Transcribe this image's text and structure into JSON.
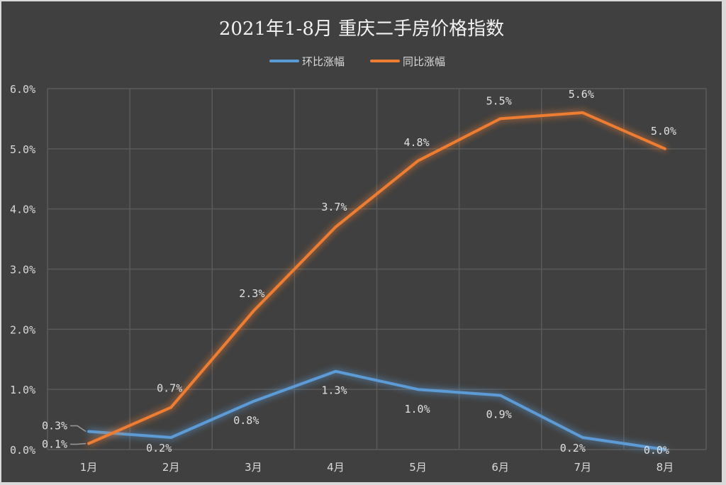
{
  "chart_data": {
    "type": "line",
    "title": "2021年1-8月 重庆二手房价格指数",
    "xlabel": "",
    "ylabel": "",
    "categories": [
      "1月",
      "2月",
      "3月",
      "4月",
      "5月",
      "6月",
      "7月",
      "8月"
    ],
    "series": [
      {
        "name": "环比涨幅",
        "color": "#5b9bd5",
        "values": [
          0.3,
          0.2,
          0.8,
          1.3,
          1.0,
          0.9,
          0.2,
          0.0
        ],
        "labels": [
          "0.3%",
          "0.2%",
          "0.8%",
          "1.3%",
          "1.0%",
          "0.9%",
          "0.2%",
          "0.0%"
        ]
      },
      {
        "name": "同比涨幅",
        "color": "#ed7d31",
        "values": [
          0.1,
          0.7,
          2.3,
          3.7,
          4.8,
          5.5,
          5.6,
          5.0
        ],
        "labels": [
          "0.1%",
          "0.7%",
          "2.3%",
          "3.7%",
          "4.8%",
          "5.5%",
          "5.6%",
          "5.0%"
        ]
      }
    ],
    "yticks": [
      "0.0%",
      "1.0%",
      "2.0%",
      "3.0%",
      "4.0%",
      "5.0%",
      "6.0%"
    ],
    "ylim": [
      0,
      6
    ],
    "grid": true,
    "legend_position": "top"
  },
  "colors": {
    "background": "#404040",
    "border": "#d9d9d9",
    "grid": "#5a5a5a"
  }
}
